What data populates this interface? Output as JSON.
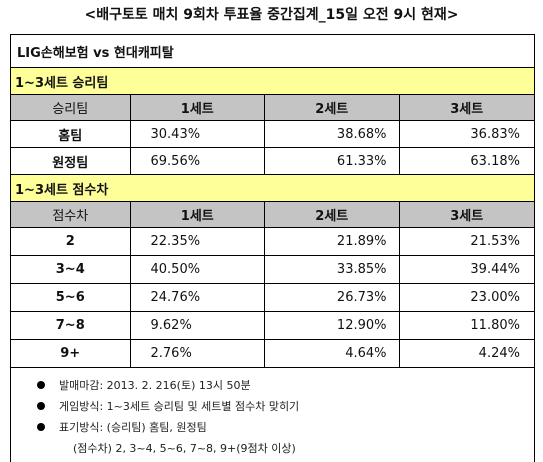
{
  "title": "<배구토토 매치 9회차 투표율 중간집계_15일 오전 9시 현재>",
  "match": "LIG손해보험 vs 현대캐피탈",
  "section1": {
    "title": "1~3세트 승리팀",
    "headers": [
      "승리팀",
      "1세트",
      "2세트",
      "3세트"
    ],
    "rows": [
      {
        "label": "홈팀",
        "values": [
          "30.43%",
          "38.68%",
          "36.83%"
        ]
      },
      {
        "label": "원정팀",
        "values": [
          "69.56%",
          "61.33%",
          "63.18%"
        ]
      }
    ]
  },
  "section2": {
    "title": "1~3세트 점수차",
    "headers": [
      "점수차",
      "1세트",
      "2세트",
      "3세트"
    ],
    "rows": [
      {
        "label": "2",
        "values": [
          "22.35%",
          "21.89%",
          "21.53%"
        ]
      },
      {
        "label": "3~4",
        "values": [
          "40.50%",
          "33.85%",
          "39.44%"
        ]
      },
      {
        "label": "5~6",
        "values": [
          "24.76%",
          "26.73%",
          "23.00%"
        ]
      },
      {
        "label": "7~8",
        "values": [
          "9.62%",
          "12.90%",
          "11.80%"
        ]
      },
      {
        "label": "9+",
        "values": [
          "2.76%",
          "4.64%",
          "4.24%"
        ]
      }
    ]
  },
  "notes": [
    "발매마감: 2013. 2. 216(토) 13시 50분",
    "게임방식: 1~3세트 승리팀 및 세트별 점수차 맞히기",
    "표기방식: (승리팀) 홈팀, 원정팀"
  ],
  "note_sub": "(점수차) 2, 3~4, 5~6, 7~8, 9+(9점차 이상)"
}
